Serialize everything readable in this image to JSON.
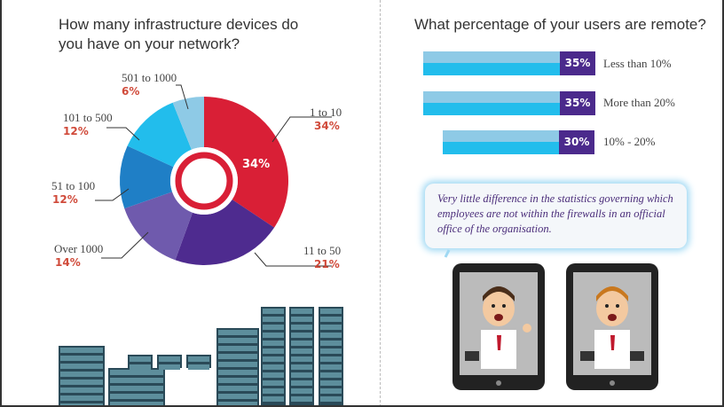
{
  "left_title": "How many infrastructure devices do you have on your network?",
  "right_title": "What percentage of your users are remote?",
  "chart_data": [
    {
      "type": "pie",
      "title": "How many infrastructure devices do you have on your network?",
      "donut": true,
      "slices": [
        {
          "label": "1 to 10",
          "value": 34,
          "display": "34%",
          "color": "#d91f36"
        },
        {
          "label": "11 to 50",
          "value": 21,
          "display": "21%",
          "color": "#4e2b8f"
        },
        {
          "label": "Over 1000",
          "value": 14,
          "display": "14%",
          "color": "#6f5aad"
        },
        {
          "label": "51 to 100",
          "value": 12,
          "display": "12%",
          "color": "#1f7fc6"
        },
        {
          "label": "101 to 500",
          "value": 12,
          "display": "12%",
          "color": "#22bdec"
        },
        {
          "label": "501 to 1000",
          "value": 6,
          "display": "6%",
          "color": "#8ecae6"
        }
      ],
      "inner_label": "34%"
    },
    {
      "type": "bar",
      "orientation": "horizontal",
      "title": "What percentage of your users are remote?",
      "categories": [
        "Less than 10%",
        "More than 20%",
        "10% - 20%"
      ],
      "values": [
        35,
        35,
        30
      ],
      "display": [
        "35%",
        "35%",
        "30%"
      ],
      "colors": {
        "bar_light": "#8ecae6",
        "bar": "#22bdec",
        "value_box": "#4b2a8c"
      }
    }
  ],
  "callout": "Very little difference in the statistics governing which employees are not within the firewalls in an official office of the organisation.",
  "icons": [
    "server-rack-illustration",
    "tablet-businessman-illustration"
  ]
}
